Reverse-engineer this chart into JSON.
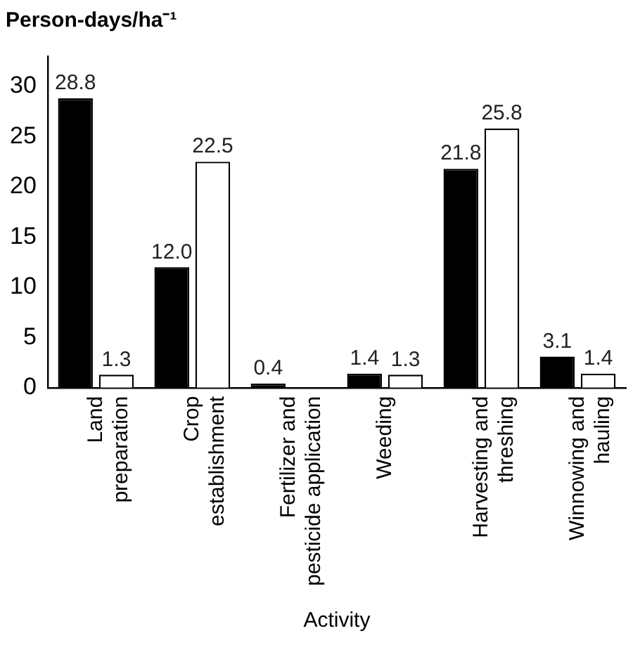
{
  "chart_data": {
    "type": "bar",
    "title": "Person-days/ha⁻¹",
    "xlabel": "Activity",
    "categories": [
      "Land\npreparation",
      "Crop\nestablishment",
      "Fertilizer and\npesticide application",
      "Weeding",
      "Harvesting and\nthreshing",
      "Winnowing and\nhauling"
    ],
    "series": [
      {
        "color": "#000000",
        "values": [
          28.8,
          12.0,
          0.4,
          1.4,
          21.8,
          3.1
        ],
        "value_labels": [
          "28.8",
          "12.0",
          "0.4",
          "1.4",
          "21.8",
          "3.1"
        ]
      },
      {
        "color": "#ffffff",
        "values": [
          1.3,
          22.5,
          null,
          1.3,
          25.8,
          1.4
        ],
        "value_labels": [
          "1.3",
          "22.5",
          null,
          "1.3",
          "25.8",
          "1.4"
        ]
      }
    ],
    "ylim": [
      0,
      33
    ],
    "yticks": [
      0,
      5,
      10,
      15,
      20,
      25,
      30
    ],
    "grid": false,
    "legend": false
  }
}
